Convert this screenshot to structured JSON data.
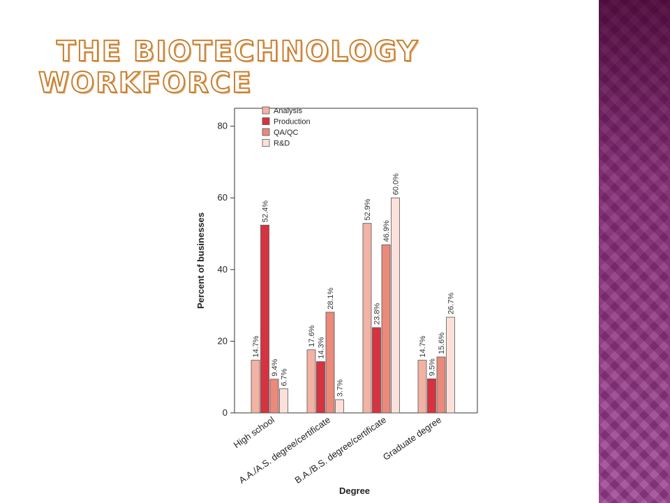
{
  "slide": {
    "title_line1": "The Biotechnology",
    "title_line2": "Workforce"
  },
  "colors": {
    "side_panel": "#9b3d8f",
    "title_outline": "#c77f2f"
  },
  "chart_data": {
    "type": "bar",
    "title": "",
    "xlabel": "Degree",
    "ylabel": "Percent of businesses",
    "ylim": [
      0,
      85
    ],
    "yticks": [
      0,
      20,
      40,
      60,
      80
    ],
    "grid": false,
    "legend_position": "top-left",
    "categories": [
      "High school",
      "A.A./A.S. degree/certificate",
      "B.A./B.S. degree/certificate",
      "Graduate degree"
    ],
    "series": [
      {
        "name": "Analysis",
        "color": "#f2b3a4",
        "values": [
          14.7,
          17.6,
          52.9,
          14.7
        ],
        "labels": [
          "14.7%",
          "17.6%",
          "52.9%",
          "14.7%"
        ]
      },
      {
        "name": "Production",
        "color": "#d7323f",
        "values": [
          52.4,
          14.3,
          23.8,
          9.5
        ],
        "labels": [
          "52.4%",
          "14.3%",
          "23.8%",
          "9.5%"
        ]
      },
      {
        "name": "QA/QC",
        "color": "#e98a7b",
        "values": [
          9.4,
          28.1,
          46.9,
          15.6
        ],
        "labels": [
          "9.4%",
          "28.1%",
          "46.9%",
          "15.6%"
        ]
      },
      {
        "name": "R&D",
        "color": "#fbe1da",
        "values": [
          6.7,
          3.7,
          60.0,
          26.7
        ],
        "labels": [
          "6.7%",
          "3.7%",
          "60.0%",
          "26.7%"
        ]
      }
    ]
  }
}
